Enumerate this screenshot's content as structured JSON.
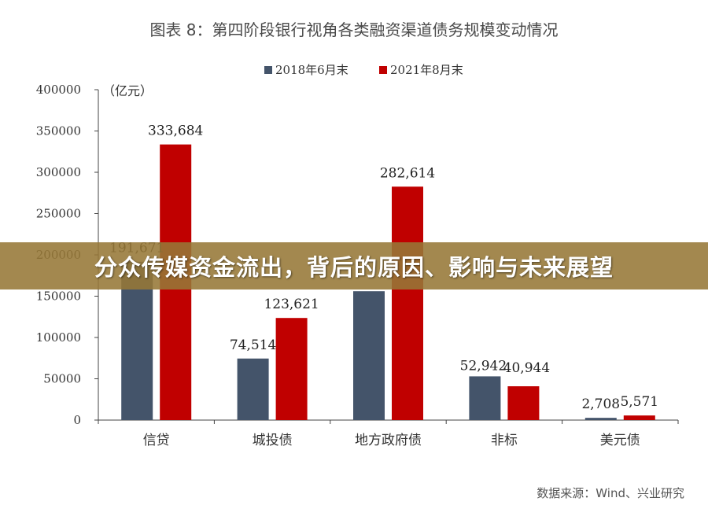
{
  "chart_data": {
    "type": "bar",
    "title": "图表 8：第四阶段银行视角各类融资渠道债务规模变动情况",
    "unit_label": "（亿元）",
    "categories": [
      "信贷",
      "城投债",
      "地方政府债",
      "非标",
      "美元债"
    ],
    "series": [
      {
        "name": "2018年6月末",
        "color": "#44546a",
        "values": [
          191671,
          74514,
          156000,
          52942,
          2708
        ],
        "labels": [
          "191,671",
          "74,514",
          "",
          "52,942",
          "2,708"
        ]
      },
      {
        "name": "2021年8月末",
        "color": "#c00000",
        "values": [
          333684,
          123621,
          282614,
          40944,
          5571
        ],
        "labels": [
          "333,684",
          "123,621",
          "282,614",
          "40,944",
          "5,571"
        ]
      }
    ],
    "ylim": [
      0,
      400000
    ],
    "yticks": [
      0,
      50000,
      100000,
      150000,
      200000,
      250000,
      300000,
      350000,
      400000
    ],
    "legend_position": "top-center",
    "grid": false,
    "source": "数据来源：Wind、兴业研究"
  },
  "banner": {
    "text": "分众传媒资金流出，背后的原因、影响与未来展望"
  }
}
